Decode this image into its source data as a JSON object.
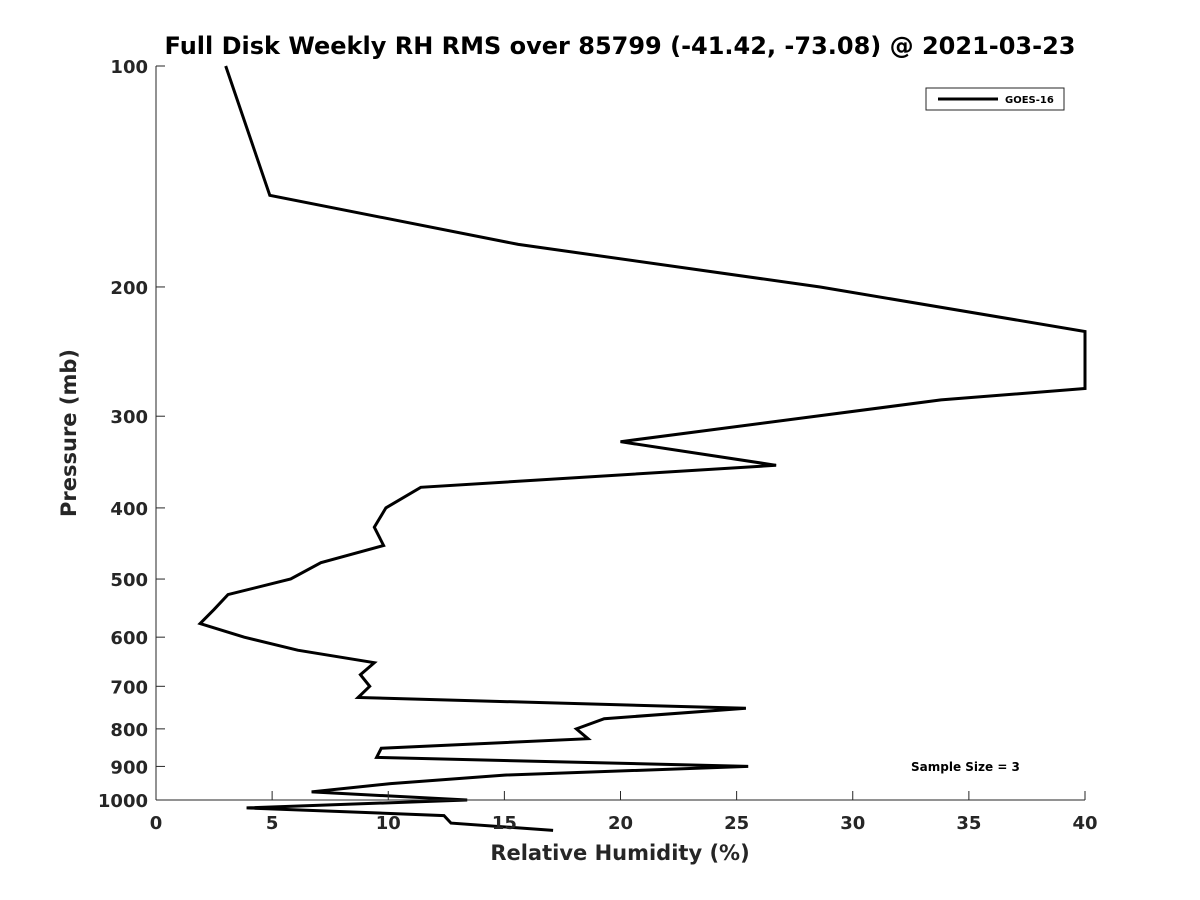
{
  "chart_data": {
    "type": "line",
    "title": "Full Disk Weekly RH RMS over 85799 (-41.42, -73.08) @ 2021-03-23",
    "xlabel": "Relative Humidity (%)",
    "ylabel": "Pressure (mb)",
    "xlim": [
      0,
      40
    ],
    "ylim": [
      1000,
      100
    ],
    "yscale": "log",
    "y_reversed": true,
    "grid": false,
    "legend_position": "top-right",
    "x_ticks": [
      "0",
      "5",
      "10",
      "15",
      "20",
      "25",
      "30",
      "35",
      "40"
    ],
    "y_ticks": [
      "100",
      "200",
      "300",
      "400",
      "500",
      "600",
      "700",
      "800",
      "900",
      "1000"
    ],
    "annotation": "Sample Size = 3",
    "series": [
      {
        "name": "GOES-16",
        "color": "#000000",
        "points": [
          {
            "x": 3.0,
            "y": 100
          },
          {
            "x": 4.9,
            "y": 150
          },
          {
            "x": 15.6,
            "y": 175
          },
          {
            "x": 28.6,
            "y": 200
          },
          {
            "x": 40.0,
            "y": 230
          },
          {
            "x": 40.0,
            "y": 275
          },
          {
            "x": 33.8,
            "y": 285
          },
          {
            "x": 20.0,
            "y": 325
          },
          {
            "x": 26.7,
            "y": 350
          },
          {
            "x": 11.4,
            "y": 375
          },
          {
            "x": 9.9,
            "y": 400
          },
          {
            "x": 9.4,
            "y": 425
          },
          {
            "x": 9.8,
            "y": 450
          },
          {
            "x": 7.1,
            "y": 475
          },
          {
            "x": 5.8,
            "y": 500
          },
          {
            "x": 3.1,
            "y": 525
          },
          {
            "x": 2.5,
            "y": 550
          },
          {
            "x": 1.9,
            "y": 575
          },
          {
            "x": 3.8,
            "y": 600
          },
          {
            "x": 6.1,
            "y": 625
          },
          {
            "x": 9.4,
            "y": 650
          },
          {
            "x": 8.8,
            "y": 675
          },
          {
            "x": 9.2,
            "y": 700
          },
          {
            "x": 8.7,
            "y": 725
          },
          {
            "x": 25.4,
            "y": 750
          },
          {
            "x": 19.3,
            "y": 775
          },
          {
            "x": 18.1,
            "y": 800
          },
          {
            "x": 18.6,
            "y": 825
          },
          {
            "x": 9.7,
            "y": 850
          },
          {
            "x": 9.5,
            "y": 875
          },
          {
            "x": 25.5,
            "y": 900
          },
          {
            "x": 15.0,
            "y": 925
          },
          {
            "x": 10.1,
            "y": 950
          },
          {
            "x": 6.7,
            "y": 975
          },
          {
            "x": 13.4,
            "y": 1000
          },
          {
            "x": 3.9,
            "y": 1025
          },
          {
            "x": 12.4,
            "y": 1050
          },
          {
            "x": 12.7,
            "y": 1075
          },
          {
            "x": 17.1,
            "y": 1100
          }
        ]
      }
    ]
  }
}
